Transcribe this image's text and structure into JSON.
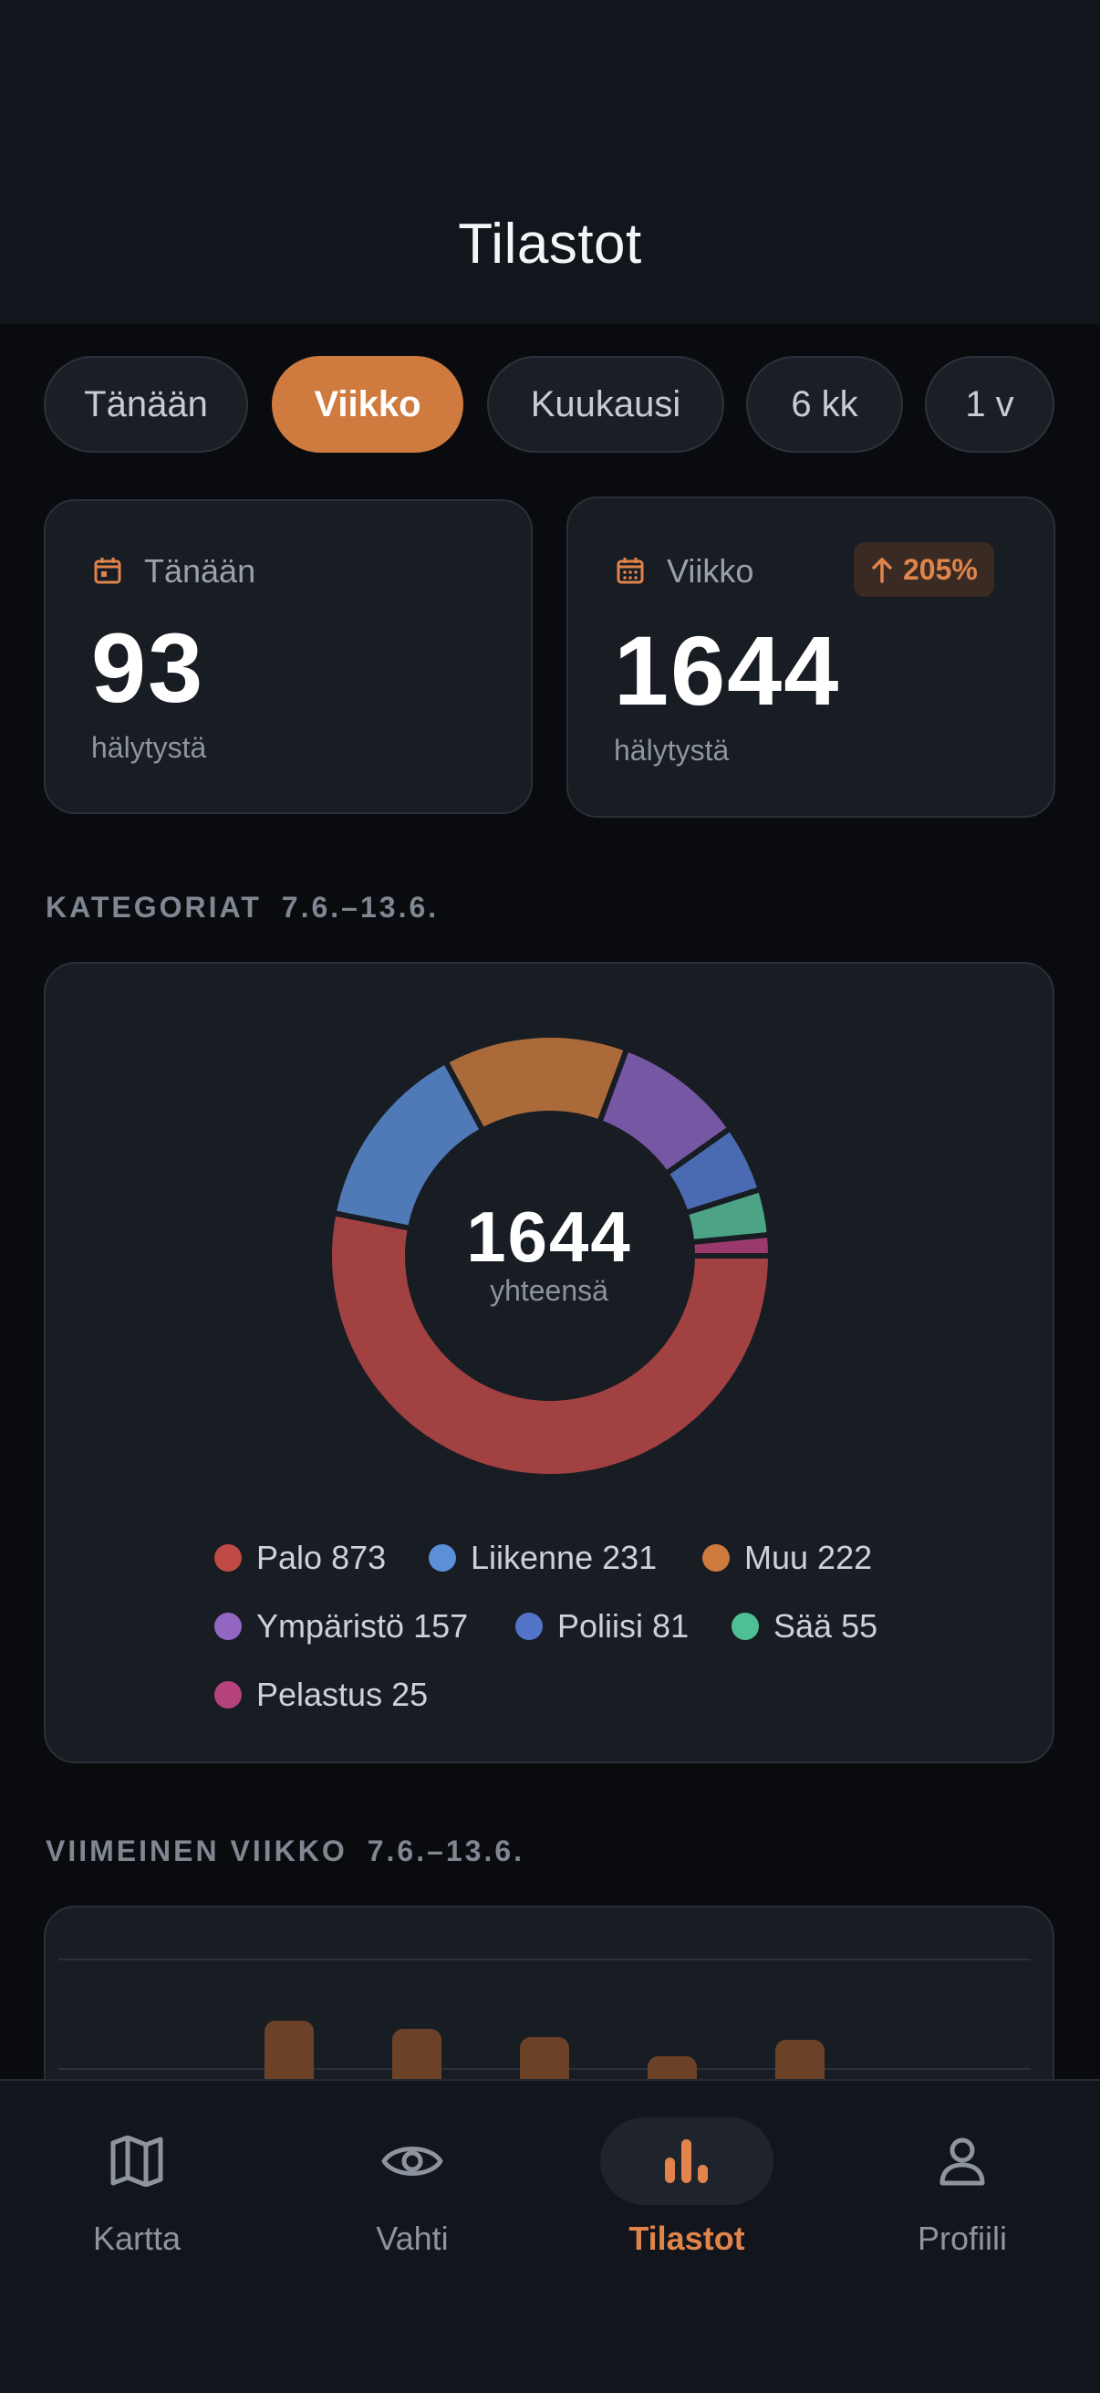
{
  "header": {
    "title": "Tilastot"
  },
  "ranges": [
    {
      "label": "Tänään",
      "active": false
    },
    {
      "label": "Viikko",
      "active": true
    },
    {
      "label": "Kuukausi",
      "active": false
    },
    {
      "label": "6 kk",
      "active": false
    },
    {
      "label": "1 v",
      "active": false
    }
  ],
  "stats": {
    "today": {
      "label": "Tänään",
      "value": "93",
      "unit": "hälytystä"
    },
    "week": {
      "label": "Viikko",
      "value": "1644",
      "unit": "hälytystä",
      "change": "205%",
      "change_direction": "up"
    }
  },
  "categories_section": {
    "title": "KATEGORIAT",
    "date_range": "7.6.–13.6."
  },
  "donut": {
    "total": "1644",
    "total_label": "yhteensä",
    "slices": [
      {
        "name": "Palo",
        "value": 873,
        "color": "#a14141",
        "legend_color": "#c04a45"
      },
      {
        "name": "Liikenne",
        "value": 231,
        "color": "#507ab7",
        "legend_color": "#5b8fd8"
      },
      {
        "name": "Muu",
        "value": 222,
        "color": "#aa6a3a",
        "legend_color": "#cf7a3f"
      },
      {
        "name": "Ympäristö",
        "value": 157,
        "color": "#7657a3",
        "legend_color": "#9466c4"
      },
      {
        "name": "Poliisi",
        "value": 81,
        "color": "#4a6ab1",
        "legend_color": "#5275c9"
      },
      {
        "name": "Sää",
        "value": 55,
        "color": "#4ca386",
        "legend_color": "#4fbf94"
      },
      {
        "name": "Pelastus",
        "value": 25,
        "color": "#9a3a6c",
        "legend_color": "#b5427c"
      }
    ]
  },
  "weekly_section": {
    "title": "VIIMEINEN VIIKKO",
    "date_range": "7.6.–13.6."
  },
  "nav": [
    {
      "label": "Kartta",
      "icon": "map-icon",
      "active": false
    },
    {
      "label": "Vahti",
      "icon": "eye-icon",
      "active": false
    },
    {
      "label": "Tilastot",
      "icon": "bar-chart-icon",
      "active": true
    },
    {
      "label": "Profiili",
      "icon": "user-icon",
      "active": false
    }
  ],
  "colors": {
    "accent": "#cf7a3f",
    "background": "#0a0b0e",
    "card": "#181c23"
  }
}
